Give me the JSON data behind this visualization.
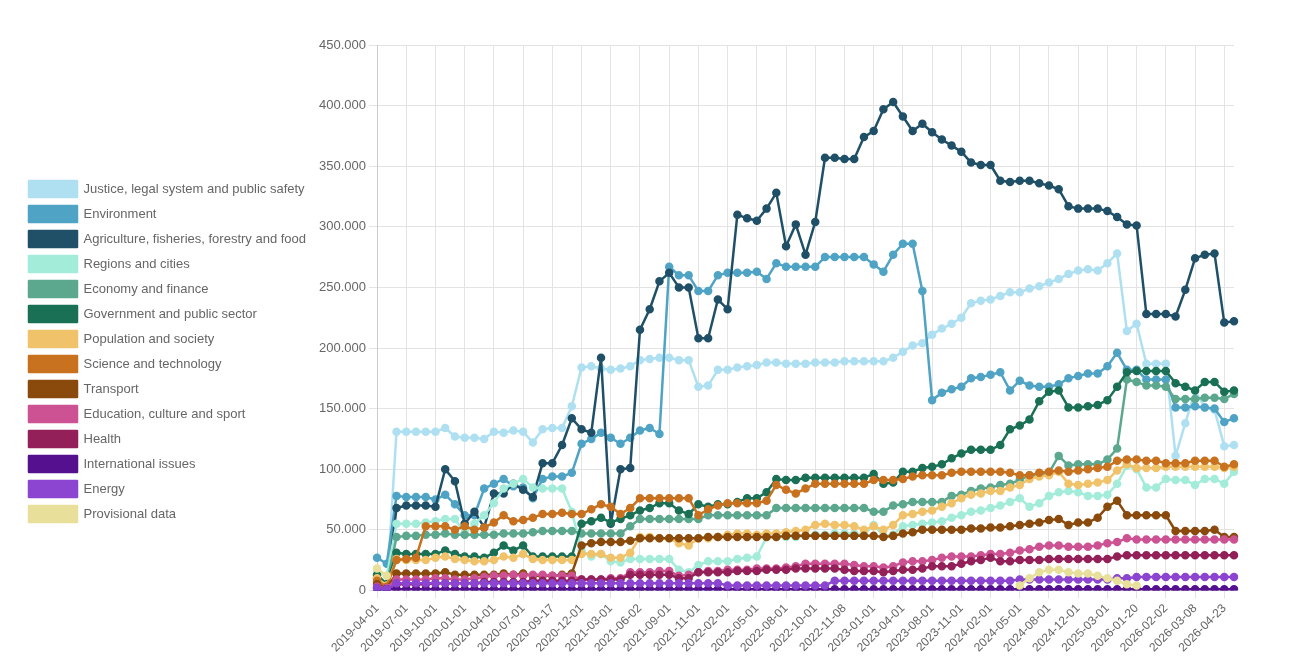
{
  "chart_data": {
    "type": "line",
    "categories": [
      "2019-04-01",
      null,
      null,
      "2019-07-01",
      null,
      null,
      "2019-10-01",
      null,
      null,
      "2020-01-01",
      null,
      null,
      "2020-04-01",
      null,
      null,
      "2020-07-01",
      null,
      null,
      "2020-09-17",
      null,
      null,
      "2020-12-01",
      null,
      null,
      "2021-03-01",
      null,
      null,
      "2021-06-02",
      null,
      null,
      "2021-09-01",
      null,
      null,
      "2021-11-01",
      null,
      null,
      "2022-02-01",
      null,
      null,
      "2022-05-01",
      null,
      null,
      "2022-08-01",
      null,
      null,
      "2022-10-01",
      null,
      null,
      "2022-11-08",
      null,
      null,
      "2023-01-01",
      null,
      null,
      "2023-04-01",
      null,
      null,
      "2023-08-01",
      null,
      null,
      "2023-11-01",
      null,
      null,
      "2024-02-01",
      null,
      null,
      "2024-05-01",
      null,
      null,
      "2024-08-01",
      null,
      null,
      "2024-12-01",
      null,
      null,
      "2025-03-01",
      null,
      null,
      "2026-01-20",
      null,
      null,
      "2026-02-02",
      null,
      null,
      "2026-03-08",
      null,
      null,
      "2026-04-23",
      null
    ],
    "ylim": [
      0,
      450000
    ],
    "yticks": [
      0,
      {
        "value": 50000,
        "label": "50.000"
      },
      {
        "value": 100000,
        "label": "100.000"
      },
      {
        "value": 150000,
        "label": "150.000"
      },
      {
        "value": 200000,
        "label": "200.000"
      },
      {
        "value": 250000,
        "label": "250.000"
      },
      {
        "value": 300000,
        "label": "300.000"
      },
      {
        "value": 350000,
        "label": "350.000"
      },
      {
        "value": 400000,
        "label": "400.000"
      },
      {
        "value": 450000,
        "label": "450.000"
      }
    ],
    "grid": true,
    "legend": "left",
    "marker": "circle",
    "series": [
      {
        "name": "Justice, legal system and public safety",
        "color": "#aee0f2",
        "values": [
          0,
          0,
          131000,
          131000,
          131000,
          131000,
          131000,
          134000,
          127000,
          126000,
          126000,
          125000,
          131000,
          130000,
          132000,
          131000,
          122000,
          133000,
          134000,
          134000,
          152000,
          184000,
          185000,
          183000,
          182000,
          183000,
          185000,
          190000,
          191000,
          192000,
          192000,
          190000,
          190000,
          168000,
          169000,
          182000,
          182000,
          184000,
          185000,
          186000,
          188000,
          188000,
          187000,
          187000,
          187000,
          188000,
          188000,
          188000,
          189000,
          189000,
          189000,
          189000,
          189000,
          192000,
          197000,
          202000,
          204000,
          211000,
          216000,
          220000,
          225000,
          237000,
          239000,
          240000,
          243000,
          246000,
          246000,
          249000,
          251000,
          254000,
          257000,
          261000,
          264000,
          265000,
          264000,
          270000,
          278000,
          214000,
          220000,
          187000,
          187000,
          187000,
          111000,
          138000,
          165000,
          151000,
          149000,
          119000,
          120000
        ]
      },
      {
        "name": "Environment",
        "color": "#4fa3c4",
        "values": [
          27000,
          22000,
          78000,
          77000,
          77000,
          77000,
          75000,
          79000,
          71000,
          62000,
          62000,
          84000,
          88000,
          92000,
          86000,
          85000,
          76000,
          92000,
          94000,
          94000,
          97000,
          121000,
          125000,
          130000,
          126000,
          121000,
          126000,
          132000,
          134000,
          129000,
          267000,
          260000,
          260000,
          247000,
          247000,
          260000,
          262000,
          262000,
          262000,
          263000,
          257000,
          270000,
          267000,
          267000,
          267000,
          267000,
          275000,
          275000,
          275000,
          275000,
          275000,
          269000,
          263000,
          277000,
          286000,
          286000,
          247000,
          157000,
          163000,
          166000,
          168000,
          175000,
          176000,
          178000,
          180000,
          165000,
          173000,
          169000,
          168000,
          168000,
          170000,
          175000,
          177000,
          179000,
          179000,
          185000,
          196000,
          182000,
          182000,
          174000,
          174000,
          174000,
          151000,
          151000,
          152000,
          151000,
          150000,
          139000,
          142000
        ]
      },
      {
        "name": "Agriculture, fisheries, forestry and food",
        "color": "#1f5068",
        "values": [
          10000,
          2000,
          68000,
          70000,
          70000,
          70000,
          69000,
          100000,
          90000,
          55000,
          65000,
          52000,
          80000,
          80000,
          88000,
          83000,
          77000,
          105000,
          105000,
          120000,
          142000,
          133000,
          130000,
          192000,
          55000,
          100000,
          101000,
          215000,
          232000,
          255000,
          262000,
          250000,
          250000,
          208000,
          208000,
          240000,
          232000,
          310000,
          307000,
          305000,
          315000,
          328000,
          284000,
          302000,
          277000,
          304000,
          357000,
          357000,
          356000,
          356000,
          374000,
          379000,
          397000,
          403000,
          391000,
          379000,
          385000,
          378000,
          372000,
          367000,
          362000,
          353000,
          351000,
          351000,
          338000,
          337000,
          338000,
          338000,
          336000,
          334000,
          331000,
          317000,
          315000,
          315000,
          315000,
          313000,
          308000,
          302000,
          301000,
          228000,
          228000,
          228000,
          226000,
          248000,
          274000,
          277000,
          278000,
          221000,
          222000
        ]
      },
      {
        "name": "Regions and cities",
        "color": "#a3ecd9",
        "values": [
          17000,
          12000,
          55000,
          55000,
          55000,
          56000,
          57000,
          59000,
          59000,
          47000,
          55000,
          62000,
          72000,
          84000,
          88000,
          92000,
          85000,
          84000,
          84000,
          84000,
          65000,
          33000,
          28000,
          30000,
          24000,
          23000,
          26000,
          26000,
          26000,
          26000,
          26000,
          17000,
          15000,
          21000,
          24000,
          24000,
          24000,
          26000,
          27000,
          28000,
          44000,
          44000,
          44000,
          44000,
          45000,
          46000,
          46000,
          47000,
          47000,
          47000,
          46000,
          54000,
          45000,
          46000,
          53000,
          54000,
          55000,
          56000,
          57000,
          60000,
          62000,
          65000,
          66000,
          68000,
          70000,
          73000,
          76000,
          69000,
          72000,
          78000,
          81000,
          82000,
          81000,
          78000,
          78000,
          79000,
          88000,
          103000,
          100000,
          85000,
          85000,
          92000,
          91000,
          91000,
          87000,
          92000,
          92000,
          88000,
          98000
        ]
      },
      {
        "name": "Economy and finance",
        "color": "#5ca88f",
        "values": [
          12000,
          5000,
          44000,
          45000,
          45000,
          46000,
          46000,
          47000,
          46000,
          46000,
          46000,
          46000,
          46000,
          47000,
          47000,
          47000,
          48000,
          49000,
          49000,
          49000,
          49000,
          47000,
          47000,
          47000,
          47000,
          47000,
          53000,
          59000,
          59000,
          59000,
          59000,
          59000,
          59000,
          59000,
          62000,
          62000,
          62000,
          62000,
          62000,
          62000,
          62000,
          68000,
          68000,
          68000,
          68000,
          68000,
          68000,
          68000,
          68000,
          68000,
          68000,
          65000,
          65000,
          70000,
          71000,
          73000,
          73000,
          73000,
          73000,
          78000,
          79000,
          82000,
          84000,
          85000,
          87000,
          88000,
          91000,
          95000,
          95000,
          97000,
          111000,
          103000,
          104000,
          104000,
          104000,
          108000,
          117000,
          174000,
          172000,
          169000,
          169000,
          168000,
          158000,
          158000,
          158000,
          159000,
          159000,
          158000,
          162000
        ]
      },
      {
        "name": "Government and public sector",
        "color": "#1a7055",
        "values": [
          13000,
          5000,
          31000,
          30000,
          30000,
          30000,
          30000,
          33000,
          30000,
          28000,
          28000,
          27000,
          31000,
          37000,
          33000,
          37000,
          28000,
          28000,
          28000,
          28000,
          28000,
          55000,
          57000,
          60000,
          56000,
          59000,
          62000,
          66000,
          68000,
          72000,
          72000,
          66000,
          63000,
          71000,
          69000,
          71000,
          71000,
          73000,
          76000,
          76000,
          81000,
          92000,
          91000,
          91000,
          93000,
          93000,
          93000,
          93000,
          93000,
          93000,
          93000,
          96000,
          88000,
          89000,
          98000,
          98000,
          101000,
          102000,
          104000,
          109000,
          113000,
          116000,
          116000,
          116000,
          120000,
          133000,
          136000,
          141000,
          156000,
          164000,
          165000,
          151000,
          151000,
          152000,
          153000,
          157000,
          168000,
          180000,
          181000,
          181000,
          181000,
          181000,
          171000,
          168000,
          165000,
          172000,
          172000,
          164000,
          165000
        ]
      },
      {
        "name": "Population and society",
        "color": "#f0c36a",
        "values": [
          10000,
          4000,
          26000,
          25000,
          25000,
          25000,
          27000,
          28000,
          26000,
          25000,
          24000,
          24000,
          25000,
          28000,
          27000,
          30000,
          26000,
          25000,
          25000,
          25000,
          25000,
          30000,
          30000,
          30000,
          27000,
          27000,
          31000,
          44000,
          44000,
          43000,
          43000,
          39000,
          37000,
          43000,
          43000,
          44000,
          46000,
          47000,
          47000,
          46000,
          47000,
          47000,
          48000,
          49000,
          50000,
          54000,
          55000,
          54000,
          54000,
          53000,
          50000,
          53000,
          50000,
          54000,
          62000,
          63000,
          65000,
          66000,
          69000,
          72000,
          76000,
          79000,
          80000,
          82000,
          82000,
          85000,
          87000,
          92000,
          94000,
          95000,
          98000,
          88000,
          87000,
          88000,
          89000,
          91000,
          99000,
          104000,
          101000,
          101000,
          101000,
          102000,
          102000,
          102000,
          102000,
          102000,
          102000,
          101000,
          102000
        ]
      },
      {
        "name": "Science and technology",
        "color": "#c8711f",
        "values": [
          8000,
          3000,
          25000,
          26000,
          27000,
          53000,
          53000,
          53000,
          50000,
          53000,
          50000,
          52000,
          56000,
          62000,
          57000,
          58000,
          60000,
          63000,
          63000,
          64000,
          63000,
          63000,
          67000,
          71000,
          69000,
          63000,
          68000,
          76000,
          76000,
          76000,
          76000,
          76000,
          76000,
          62000,
          67000,
          70000,
          72000,
          72000,
          72000,
          72000,
          74000,
          87000,
          83000,
          80000,
          84000,
          88000,
          88000,
          88000,
          88000,
          88000,
          88000,
          91000,
          91000,
          91000,
          92000,
          94000,
          95000,
          95000,
          95000,
          97000,
          98000,
          98000,
          98000,
          98000,
          98000,
          97000,
          95000,
          95000,
          97000,
          98000,
          99000,
          98000,
          99000,
          100000,
          101000,
          102000,
          107000,
          108000,
          108000,
          107000,
          107000,
          105000,
          105000,
          105000,
          107000,
          107000,
          107000,
          102000,
          104000
        ]
      },
      {
        "name": "Transport",
        "color": "#8a4a0c",
        "values": [
          5000,
          2000,
          14000,
          14000,
          14000,
          14000,
          14000,
          15000,
          13000,
          13000,
          13000,
          13000,
          13000,
          14000,
          13000,
          14000,
          12000,
          12000,
          12000,
          13000,
          14000,
          37000,
          39000,
          40000,
          40000,
          40000,
          41000,
          43000,
          43000,
          43000,
          43000,
          43000,
          43000,
          43000,
          44000,
          44000,
          44000,
          44000,
          44000,
          44000,
          44000,
          44000,
          45000,
          45000,
          45000,
          45000,
          45000,
          45000,
          45000,
          45000,
          45000,
          45000,
          44000,
          45000,
          47000,
          48000,
          50000,
          50000,
          50000,
          50000,
          50000,
          51000,
          51000,
          52000,
          52000,
          53000,
          54000,
          55000,
          56000,
          58000,
          59000,
          54000,
          56000,
          56000,
          60000,
          69000,
          74000,
          62000,
          62000,
          62000,
          62000,
          62000,
          49000,
          49000,
          49000,
          49000,
          50000,
          44000,
          44000
        ]
      },
      {
        "name": "Education, culture and sport",
        "color": "#cc5293",
        "values": [
          3000,
          2000,
          9000,
          9000,
          9000,
          9000,
          10000,
          10000,
          9000,
          9000,
          10000,
          11000,
          12000,
          12000,
          13000,
          12000,
          13000,
          13000,
          12000,
          12000,
          12000,
          9000,
          9000,
          9000,
          10000,
          10000,
          15000,
          15000,
          15000,
          16000,
          16000,
          12000,
          13000,
          15000,
          16000,
          16000,
          17000,
          17000,
          17000,
          18000,
          18000,
          18000,
          19000,
          20000,
          22000,
          22000,
          22000,
          22000,
          22000,
          21000,
          20000,
          20000,
          19000,
          20000,
          23000,
          24000,
          24000,
          25000,
          27000,
          28000,
          28000,
          28000,
          29000,
          30000,
          30000,
          31000,
          33000,
          34000,
          36000,
          37000,
          37000,
          36000,
          36000,
          36000,
          37000,
          39000,
          40000,
          43000,
          42000,
          42000,
          42000,
          42000,
          42000,
          42000,
          42000,
          42000,
          42000,
          42000,
          42000
        ]
      },
      {
        "name": "Health",
        "color": "#932058",
        "values": [
          2000,
          1000,
          5000,
          5000,
          5000,
          5000,
          6000,
          6000,
          6000,
          6000,
          6000,
          7000,
          7000,
          7000,
          7000,
          7000,
          8000,
          8000,
          8000,
          8000,
          8000,
          9000,
          9000,
          9000,
          9000,
          9000,
          13000,
          13000,
          13000,
          13000,
          13000,
          10000,
          10000,
          15000,
          15000,
          15000,
          15000,
          16000,
          16000,
          16000,
          17000,
          17000,
          17000,
          18000,
          18000,
          18000,
          18000,
          18000,
          17000,
          16000,
          16000,
          16000,
          15000,
          16000,
          17000,
          17000,
          18000,
          20000,
          20000,
          20000,
          22000,
          24000,
          25000,
          27000,
          24000,
          24000,
          25000,
          25000,
          25000,
          26000,
          26000,
          26000,
          26000,
          26000,
          26000,
          26000,
          28000,
          29000,
          29000,
          29000,
          29000,
          29000,
          29000,
          29000,
          29000,
          29000,
          29000,
          29000,
          29000
        ]
      },
      {
        "name": "International issues",
        "color": "#55108f",
        "values": [
          0,
          1000,
          1000,
          1000,
          1000,
          1000,
          1000,
          1000,
          1000,
          1000,
          1000,
          1000,
          1000,
          1000,
          1000,
          1000,
          1000,
          1000,
          1000,
          1000,
          1000,
          1000,
          1000,
          1000,
          1000,
          1000,
          1000,
          1000,
          1000,
          1000,
          1000,
          1000,
          1000,
          1000,
          1000,
          1000,
          1000,
          1000,
          1000,
          1000,
          1000,
          1000,
          1000,
          1000,
          1000,
          1000,
          1000,
          1000,
          1000,
          1000,
          1000,
          1000,
          1000,
          1000,
          1000,
          1000,
          1000,
          1000,
          1000,
          1000,
          1000,
          1000,
          1000,
          1000,
          1000,
          1000,
          1000,
          1000,
          1000,
          1000,
          1000,
          1000,
          1000,
          1000,
          1000,
          1000,
          1000,
          1000,
          1000,
          1000,
          1000,
          1000,
          1000,
          1000,
          1000,
          1000,
          1000,
          1000,
          1000
        ]
      },
      {
        "name": "Energy",
        "color": "#8b45d0",
        "values": [
          2000,
          1000,
          6000,
          6000,
          6000,
          6000,
          6000,
          6000,
          6000,
          6000,
          6000,
          6000,
          6000,
          6000,
          6000,
          6000,
          6000,
          6000,
          6000,
          6000,
          6000,
          6000,
          6000,
          6000,
          6000,
          6000,
          6000,
          6000,
          6000,
          6000,
          6000,
          6000,
          6000,
          6000,
          6000,
          6000,
          4000,
          4000,
          4000,
          4000,
          4000,
          4000,
          4000,
          4000,
          4000,
          4000,
          4000,
          8000,
          8000,
          8000,
          8000,
          8000,
          8000,
          8000,
          8000,
          8000,
          8000,
          8000,
          8000,
          8000,
          8000,
          8000,
          8000,
          8000,
          8000,
          8000,
          9000,
          9000,
          9000,
          9000,
          9000,
          9000,
          9000,
          9000,
          9000,
          9000,
          10000,
          10000,
          11000,
          11000,
          11000,
          11000,
          11000,
          11000,
          11000,
          11000,
          11000,
          11000,
          11000
        ]
      },
      {
        "name": "Provisional data",
        "color": "#e8e09a",
        "values": [
          18000,
          12000,
          null,
          null,
          null,
          null,
          null,
          null,
          null,
          null,
          null,
          null,
          null,
          null,
          null,
          null,
          null,
          null,
          null,
          null,
          null,
          null,
          null,
          null,
          null,
          null,
          null,
          null,
          null,
          null,
          null,
          null,
          null,
          null,
          null,
          null,
          null,
          null,
          null,
          null,
          null,
          null,
          null,
          null,
          null,
          null,
          null,
          null,
          null,
          null,
          null,
          null,
          null,
          null,
          null,
          null,
          null,
          null,
          null,
          null,
          null,
          null,
          null,
          null,
          null,
          null,
          4000,
          10000,
          15000,
          17000,
          17000,
          15000,
          14000,
          14000,
          12000,
          10000,
          8000,
          5000,
          4000,
          null,
          null,
          null,
          null,
          null,
          null,
          null,
          null,
          null,
          null
        ]
      }
    ]
  }
}
